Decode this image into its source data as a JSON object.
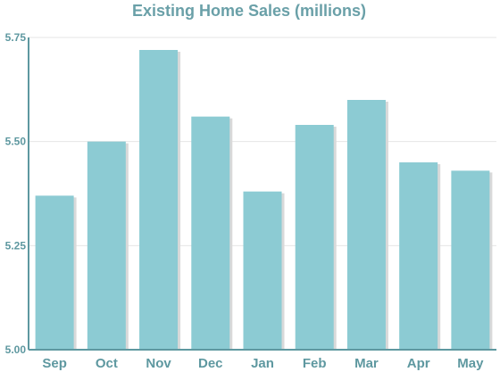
{
  "chart_data": {
    "type": "bar",
    "title": "Existing Home Sales (millions)",
    "categories": [
      "Sep",
      "Oct",
      "Nov",
      "Dec",
      "Jan",
      "Feb",
      "Mar",
      "Apr",
      "May"
    ],
    "values": [
      5.37,
      5.5,
      5.72,
      5.56,
      5.38,
      5.54,
      5.6,
      5.45,
      5.43
    ],
    "ylim": [
      5.0,
      5.75
    ],
    "yticks": [
      "5.00",
      "5.25",
      "5.50",
      "5.75"
    ],
    "grid": true,
    "bar_color": "#8ccbd3",
    "bar_shadow_color": "#d9d9d9",
    "axis_color": "#5e98a0",
    "grid_color": "#e6e6e6",
    "text_color": "#5e98a0"
  }
}
